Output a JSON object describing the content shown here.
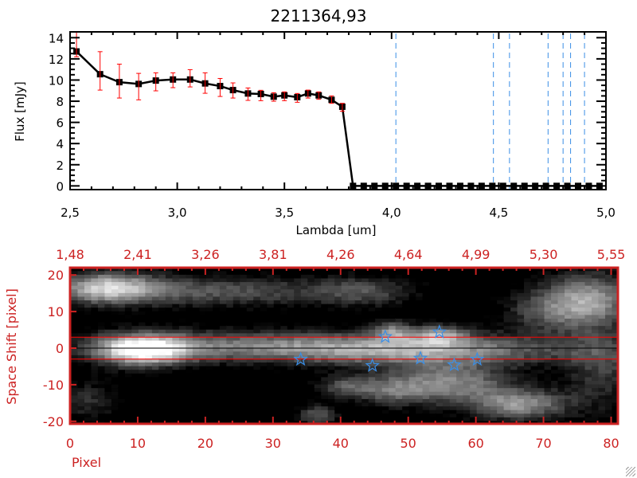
{
  "chart_data": [
    {
      "type": "line",
      "title": "2211364,93",
      "xlabel": "Lambda [um]",
      "ylabel": "Flux [mJy]",
      "xlim": [
        2.5,
        5.0
      ],
      "ylim": [
        -0.35,
        14.55
      ],
      "x_ticks": [
        "2,5",
        "3,0",
        "3,5",
        "4,0",
        "4,5",
        "5,0"
      ],
      "y_ticks": [
        "0",
        "2",
        "4",
        "6",
        "8",
        "10",
        "12",
        "14"
      ],
      "series": [
        {
          "x": [
            2.53,
            2.64,
            2.73,
            2.82,
            2.9,
            2.98,
            3.06,
            3.13,
            3.2,
            3.26,
            3.33,
            3.39,
            3.45,
            3.5,
            3.56,
            3.61,
            3.66,
            3.72,
            3.77,
            3.82,
            3.87,
            3.92,
            3.97,
            4.02,
            4.07,
            4.12,
            4.17,
            4.22,
            4.27,
            4.32,
            4.37,
            4.42,
            4.47,
            4.52,
            4.57,
            4.62,
            4.67,
            4.72,
            4.77,
            4.82,
            4.87,
            4.92,
            4.97
          ],
          "y": [
            12.7,
            10.55,
            9.8,
            9.63,
            9.95,
            10.05,
            10.05,
            9.68,
            9.43,
            9.05,
            8.73,
            8.68,
            8.43,
            8.55,
            8.38,
            8.73,
            8.55,
            8.13,
            7.48,
            0,
            0,
            0,
            0,
            0,
            0,
            0,
            0,
            0,
            0,
            0,
            0,
            0,
            0,
            0,
            0,
            0,
            0,
            0,
            0,
            0,
            0,
            0,
            0
          ],
          "err_low": [
            12.2,
            9.05,
            8.3,
            8.13,
            8.98,
            9.28,
            9.35,
            8.75,
            8.45,
            8.3,
            8.08,
            8.05,
            8.0,
            8.05,
            7.9,
            8.3,
            8.18,
            7.8,
            7.05
          ],
          "err_high": [
            14.6,
            12.68,
            11.5,
            10.63,
            10.68,
            10.68,
            10.98,
            10.68,
            10.15,
            9.73,
            9.25,
            9.03,
            8.8,
            8.88,
            8.73,
            9.05,
            8.88,
            8.5,
            7.8
          ],
          "color": "#000000",
          "error_color": "#ff0000"
        }
      ],
      "vertical_lines": [
        4.02,
        4.475,
        4.55,
        4.73,
        4.8,
        4.835,
        4.9
      ],
      "vertical_line_color": "#3a8ee6",
      "zero_line_color": "#ff0000"
    },
    {
      "type": "heatmap",
      "xlabel": "Pixel",
      "ylabel": "Space Shift [pixel]",
      "xlim": [
        0,
        81
      ],
      "ylim": [
        -20.7,
        22
      ],
      "x_ticks": [
        "0",
        "10",
        "20",
        "30",
        "40",
        "50",
        "60",
        "70",
        "80"
      ],
      "y_ticks": [
        "-20",
        "-10",
        "0",
        "10",
        "20"
      ],
      "top_ticks": [
        "1,48",
        "2,41",
        "3,26",
        "3,81",
        "4,26",
        "4,64",
        "4,99",
        "5,30",
        "5,55"
      ],
      "colormap": "grayscale",
      "horizontal_lines": [
        {
          "y": 3,
          "color": "#ff0000"
        },
        {
          "y": 0,
          "color": "#000000"
        },
        {
          "y": -3,
          "color": "#ff0000"
        }
      ],
      "markers": {
        "symbol": "star",
        "color": "#3a8ee6",
        "points": [
          [
            34.1,
            -3.1
          ],
          [
            44.7,
            -4.8
          ],
          [
            46.6,
            3.1
          ],
          [
            51.8,
            -2.8
          ],
          [
            54.6,
            4.4
          ],
          [
            56.8,
            -4.6
          ],
          [
            60.2,
            -3.1
          ]
        ]
      },
      "axis_color": "#cc2222"
    }
  ]
}
